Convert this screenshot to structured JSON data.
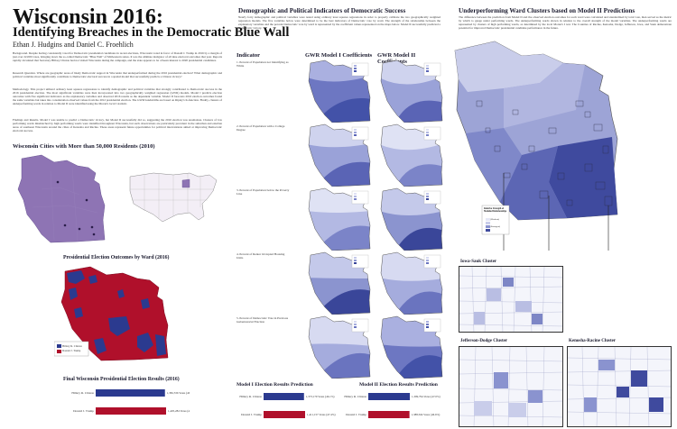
{
  "poster": {
    "title": "Wisconsin 2016:",
    "subtitle": "Identifying Breaches in the Democratic Blue Wall",
    "authors": "Ethan J. Hudgins and Daniel C. Froehlich"
  },
  "column1": {
    "background": "Background. Despite having consistently voted for Democratic presidential candidates in recent elections, Wisconsin voted in favor of Donald J. Trump in 2016 by a margin of just over 22,000 votes, bringing down the so-called Democratic \"Blue Wall\" of Midwestern states. It was the ultimate instigator of all nine electoral outcomes that year. Reports rapidly circulated that Secretary Hillary Clinton had not visited Wisconsin during the campaign, and the state appears to be of keen interest to 2020 presidential candidates.",
    "research_question": "Research Question. Where are geographic areas of likely Democratic support in Wisconsin that underperformed during the 2016 presidential election? What demographic and political variables most significantly contribute to Democratic electoral success in a spatial model that successfully predicts a Clinton victory?",
    "methodology": "Methodology. This project utilized ordinary least squares regressions to identify demographic and political variables that strongly contributed to Democratic success in the 2016 presidential election. The most significant variables were then incorporated into two geographically weighted regression (GWR) models. Model I predicts election outcomes with five significant indicators as the explanatory variables and observed 2016 results as the dependent variable. Model II forecasts 2016 election outcomes found the same variables but takes into consideration observed values from the 2012 presidential election. The GWR bandwidths are based on Ripley's K-function. Finally, clusters of underperforming wards in relation to Model II were identified using the Moran's local I statistic.",
    "findings": "Findings and Results. Model I was unable to predict a Democratic victory, but Model II successfully did so, suggesting the 2016 election was anomalous. Clusters of low performing wards mismatched by high performing wards were identified throughout Wisconsin, but such observations are particularly prevalent in the suburban and exurban areas of southeast Wisconsin around the cities of Kenosha and Racine. These areas represent future opportunities for political interventions aimed at improving Democratic electoral success.",
    "cities_title": "Wisconsin Cities with More than 50,000 Residents (2010)",
    "outcomes_title": "Presidential Election Outcomes by Ward (2016)",
    "outcomes_legend": [
      "Hillary R. Clinton",
      "Donald J. Trump"
    ],
    "final_title": "Final Wisconsin Presidential Election Results (2016)"
  },
  "final_results": {
    "candidates": [
      "Hillary R. Clinton",
      "Donald J. Trump"
    ],
    "labels": [
      "1,382,536 Votes (46.5%)",
      "1,405,284 Votes (47.2%)"
    ],
    "values": [
      1382536,
      1405284
    ],
    "colors": [
      "#2b3a8f",
      "#b0102b"
    ]
  },
  "column2": {
    "title": "Demographic and Political Indicators of Democratic Success",
    "intro": "Nearly forty demographic and political variables were tested using ordinary least squares regressions in order to properly calibrate the two geographically weighted regression models. The five variables below were determined to be the best indicators of Democratic vote by ward. The strength of the relationship between the explanatory variables and the percent Democratic vote by ward is represented by the coefficient values represented on the maps below. Model II successfully predicted a Democratic victory.",
    "head_indicator": "Indicator",
    "head_model1": "GWR Model I Coefficients",
    "head_model2": "GWR Model II Coefficients",
    "indicators": [
      "1. Percent of Population not Identifying as White",
      "2. Percent of Population with a College Degree",
      "3. Percent of Population below the Poverty Line",
      "4. Percent of Renter Occupied Housing Units",
      "5. Percent of Democratic Vote in Previous Gubernatorial Election"
    ],
    "model1_title": "Model I Election Results Prediction",
    "model2_title": "Model II Election Results Prediction"
  },
  "model1_prediction": {
    "candidates": [
      "Hillary R. Clinton",
      "Donald J. Trump"
    ],
    "labels": [
      "1,373,179 Votes (46.1%)",
      "1,411,157 Votes (47.4%)"
    ],
    "values": [
      1373179,
      1411157
    ]
  },
  "model2_prediction": {
    "candidates": [
      "Hillary R. Clinton",
      "Donald J. Trump"
    ],
    "labels": [
      "1,399,794 Votes (47.0%)",
      "1,388,564 Votes (46.6%)"
    ],
    "values": [
      1399794,
      1388564
    ]
  },
  "column3": {
    "title": "Underperforming Ward Clusters based on Model II Predictions",
    "intro": "The difference between the prediction from Model II and the observed election outcomes for each ward were calculated and standardized by total vote, then served as the metric by which to gauge under performing wards. The underperforming wards shown in relation to the overall strength of the model variables. The underperforming wards are represented by clusters of high performing wards, as determined by the local Moran's I test. The Counties of Racine, Kenosha, Dodge, Jefferson, Iowa, and Sauk demonstrate potential for improved Democratic presidential candidate performance in the future.",
    "legend_title": "Relative Strength of Modeled Relationships",
    "legend_items": [
      "(Weakest)",
      "",
      "",
      "",
      "(Strongest)"
    ],
    "cluster1": "Iowa-Sauk Cluster",
    "cluster2": "Jefferson-Dodge Cluster",
    "cluster3": "Kenosha-Racine Cluster"
  },
  "colors": {
    "title": "#111111",
    "section": "#1a1a2e",
    "democrat": "#2b3a8f",
    "republican": "#b0102b",
    "map_light": "#c9cdea",
    "map_mid": "#8a93cf",
    "map_dark": "#3f4a9e"
  }
}
